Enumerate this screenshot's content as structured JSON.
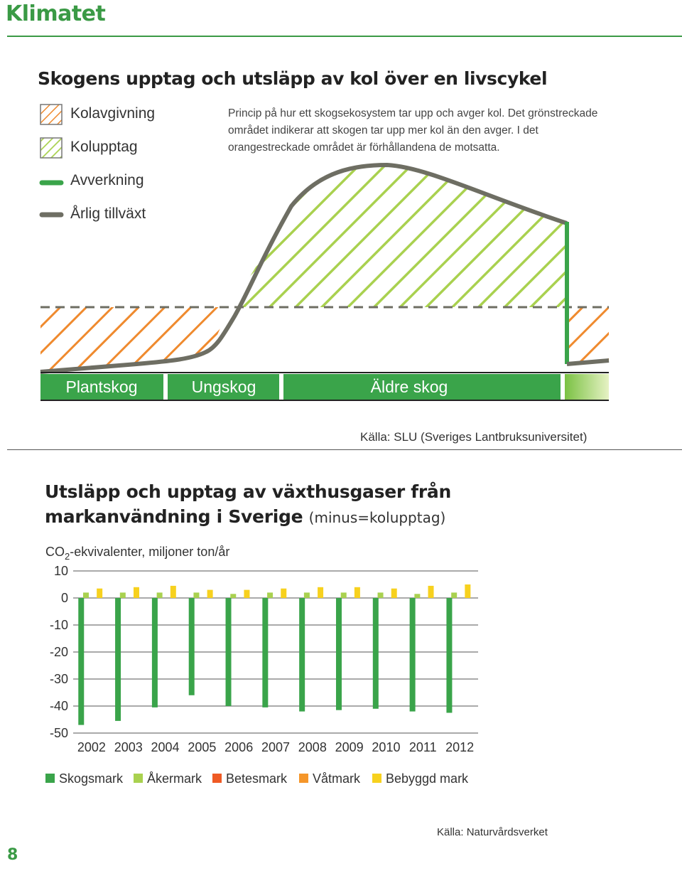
{
  "header": {
    "title": "Klimatet",
    "page_number": "8"
  },
  "lifecycle": {
    "title": "Skogens upptag och utsläpp av kol över en livscykel",
    "legend": [
      {
        "label": "Kolavgivning",
        "icon": "orange-hatch-swatch",
        "color": "#ef8a2e"
      },
      {
        "label": "Kolupptag",
        "icon": "green-hatch-swatch",
        "color": "#a9d14f"
      },
      {
        "label": "Avverkning",
        "icon": "green-line",
        "color": "#3aa44a"
      },
      {
        "label": "Årlig tillväxt",
        "icon": "gray-line",
        "color": "#6e6e63"
      }
    ],
    "description": "Princip på  hur ett skogsekosystem tar upp och avger kol. Det grönstreckade området indikerar att skogen tar upp mer kol än den avger. I det orangestreckade området är förhållandena de motsatta.",
    "stages": [
      "Plantskog",
      "Ungskog",
      "Äldre skog"
    ],
    "source": "Källa: SLU (Sveriges Lantbruksuniversitet)"
  },
  "emissions": {
    "title_line1": "Utsläpp och upptag av växthusgaser från",
    "title_line2": "markanvändning i Sverige",
    "title_note": "(minus=kolupptag)",
    "ylabel_prefix": "CO",
    "ylabel_sub": "2",
    "ylabel_suffix": "-ekvivalenter, miljoner ton/år",
    "source": "Källa: Naturvårdsverket"
  },
  "chart_data": {
    "type": "bar",
    "title": "Utsläpp och upptag av växthusgaser från markanvändning i Sverige",
    "ylabel": "CO2-ekvivalenter, miljoner ton/år",
    "ylim": [
      -50,
      10
    ],
    "yticks": [
      10,
      0,
      -10,
      -20,
      -30,
      -40,
      -50
    ],
    "categories": [
      "2002",
      "2003",
      "2004",
      "2005",
      "2006",
      "2007",
      "2008",
      "2009",
      "2010",
      "2011",
      "2012"
    ],
    "series": [
      {
        "name": "Skogsmark",
        "color": "#3aa44a",
        "values": [
          -47,
          -45.5,
          -40.5,
          -36,
          -40,
          -40.5,
          -42,
          -41.5,
          -41,
          -42,
          -42.5
        ]
      },
      {
        "name": "Åkermark",
        "color": "#a9d14f",
        "values": [
          2,
          2,
          2,
          2,
          1.5,
          2,
          2,
          2,
          2,
          1.5,
          2
        ]
      },
      {
        "name": "Betesmark",
        "color": "#ef5a24",
        "values": [
          0,
          0,
          0,
          0,
          0,
          0,
          0,
          0,
          0,
          0,
          0
        ]
      },
      {
        "name": "Våtmark",
        "color": "#f5962a",
        "values": [
          0,
          0,
          0,
          0,
          0,
          0,
          0,
          0,
          0,
          0,
          0
        ]
      },
      {
        "name": "Bebyggd mark",
        "color": "#f7d11e",
        "values": [
          3.5,
          4,
          4.5,
          3,
          3,
          3.5,
          4,
          4,
          3.5,
          4.5,
          5
        ]
      }
    ],
    "grid": true,
    "legend_position": "bottom"
  }
}
